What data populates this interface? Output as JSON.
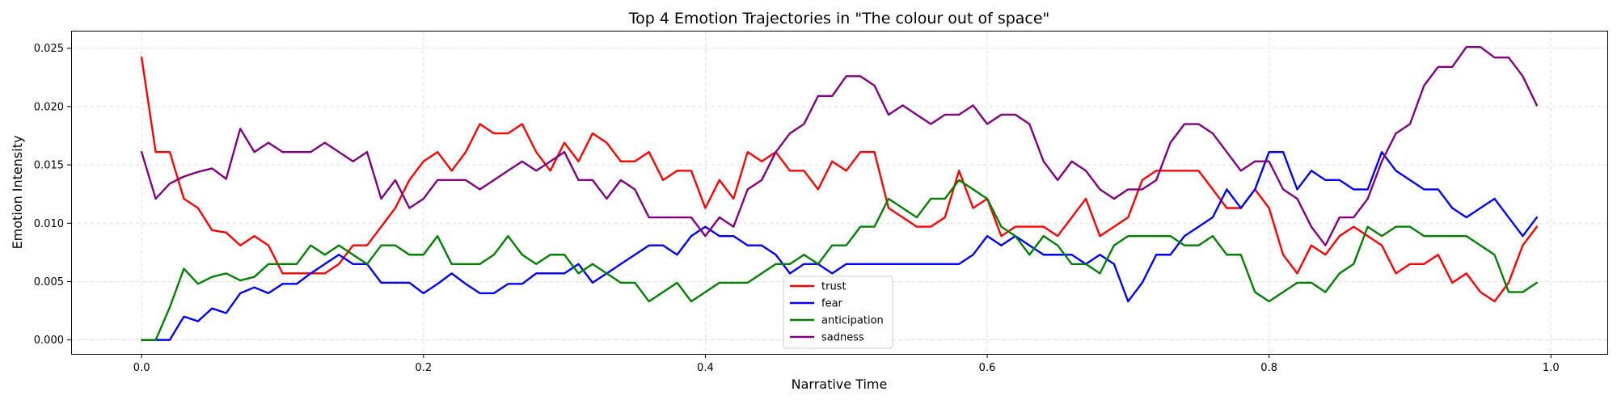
{
  "chart_data": {
    "type": "line",
    "title": "Top 4 Emotion Trajectories in \"The colour out of space\"",
    "xlabel": "Narrative Time",
    "ylabel": "Emotion Intensity",
    "xlim": [
      -0.05,
      1.04
    ],
    "ylim": [
      -0.0012,
      0.0265
    ],
    "xticks": [
      0.0,
      0.2,
      0.4,
      0.6,
      0.8,
      1.0
    ],
    "xtick_labels": [
      "0.0",
      "0.2",
      "0.4",
      "0.6",
      "0.8",
      "1.0"
    ],
    "yticks": [
      0.0,
      0.005,
      0.01,
      0.015,
      0.02,
      0.025
    ],
    "ytick_labels": [
      "0.000",
      "0.005",
      "0.010",
      "0.015",
      "0.020",
      "0.025"
    ],
    "grid": true,
    "legend_position": "bottom-center",
    "x_start": 0.0,
    "x_step": 0.01,
    "series": [
      {
        "name": "trust",
        "color": "#ff0000",
        "values": [
          0.0242,
          0.0161,
          0.0161,
          0.0121,
          0.0113,
          0.0094,
          0.0092,
          0.0081,
          0.0089,
          0.0081,
          0.0057,
          0.0057,
          0.0057,
          0.0057,
          0.0065,
          0.0081,
          0.0081,
          0.0097,
          0.0113,
          0.0137,
          0.0153,
          0.0161,
          0.0145,
          0.0161,
          0.0185,
          0.0177,
          0.0177,
          0.0185,
          0.0161,
          0.0145,
          0.0169,
          0.0153,
          0.0177,
          0.0169,
          0.0153,
          0.0153,
          0.0161,
          0.0137,
          0.0145,
          0.0145,
          0.0113,
          0.0137,
          0.0121,
          0.0161,
          0.0153,
          0.0161,
          0.0145,
          0.0145,
          0.0129,
          0.0153,
          0.0145,
          0.0161,
          0.0161,
          0.0113,
          0.0105,
          0.0097,
          0.0097,
          0.0105,
          0.0145,
          0.0113,
          0.0121,
          0.0089,
          0.0097,
          0.0097,
          0.0097,
          0.0089,
          0.0105,
          0.0121,
          0.0089,
          0.0097,
          0.0105,
          0.0137,
          0.0145,
          0.0145,
          0.0145,
          0.0145,
          0.0129,
          0.0113,
          0.0113,
          0.0129,
          0.0113,
          0.0073,
          0.0057,
          0.0081,
          0.0073,
          0.0089,
          0.0097,
          0.0089,
          0.0081,
          0.0057,
          0.0065,
          0.0065,
          0.0073,
          0.0049,
          0.0057,
          0.0041,
          0.0033,
          0.0049,
          0.0081,
          0.0097
        ]
      },
      {
        "name": "fear",
        "color": "#0000ff",
        "values": [
          0.0,
          0.0,
          0.0,
          0.002,
          0.0016,
          0.0027,
          0.0023,
          0.004,
          0.0045,
          0.004,
          0.0048,
          0.0048,
          0.0057,
          0.0065,
          0.0073,
          0.0065,
          0.0065,
          0.0049,
          0.0049,
          0.0049,
          0.004,
          0.0048,
          0.0057,
          0.0048,
          0.004,
          0.004,
          0.0048,
          0.0048,
          0.0057,
          0.0057,
          0.0057,
          0.0065,
          0.0049,
          0.0057,
          0.0065,
          0.0073,
          0.0081,
          0.0081,
          0.0073,
          0.0089,
          0.0097,
          0.0089,
          0.0089,
          0.0081,
          0.0081,
          0.0073,
          0.0057,
          0.0065,
          0.0065,
          0.0057,
          0.0065,
          0.0065,
          0.0065,
          0.0065,
          0.0065,
          0.0065,
          0.0065,
          0.0065,
          0.0065,
          0.0073,
          0.0089,
          0.0081,
          0.0089,
          0.0081,
          0.0073,
          0.0073,
          0.0073,
          0.0065,
          0.0073,
          0.0065,
          0.0033,
          0.0049,
          0.0073,
          0.0073,
          0.0089,
          0.0097,
          0.0105,
          0.0129,
          0.0113,
          0.0129,
          0.0161,
          0.0161,
          0.0129,
          0.0145,
          0.0137,
          0.0137,
          0.0129,
          0.0129,
          0.0161,
          0.0145,
          0.0137,
          0.0129,
          0.0129,
          0.0113,
          0.0105,
          0.0113,
          0.0121,
          0.0105,
          0.0089,
          0.0105
        ]
      },
      {
        "name": "anticipation",
        "color": "#008000",
        "values": [
          0.0,
          0.0,
          0.0028,
          0.0061,
          0.0048,
          0.0054,
          0.0057,
          0.0051,
          0.0054,
          0.0065,
          0.0065,
          0.0065,
          0.0081,
          0.0073,
          0.0081,
          0.0073,
          0.0065,
          0.0081,
          0.0081,
          0.0073,
          0.0073,
          0.0089,
          0.0065,
          0.0065,
          0.0065,
          0.0073,
          0.0089,
          0.0073,
          0.0065,
          0.0073,
          0.0073,
          0.0057,
          0.0065,
          0.0057,
          0.0049,
          0.0049,
          0.0033,
          0.0041,
          0.0049,
          0.0033,
          0.0041,
          0.0049,
          0.0049,
          0.0049,
          0.0057,
          0.0065,
          0.0065,
          0.0073,
          0.0065,
          0.0081,
          0.0081,
          0.0097,
          0.0097,
          0.0121,
          0.0113,
          0.0105,
          0.0121,
          0.0121,
          0.0137,
          0.0129,
          0.0121,
          0.0097,
          0.0089,
          0.0073,
          0.0089,
          0.0081,
          0.0065,
          0.0065,
          0.0057,
          0.0081,
          0.0089,
          0.0089,
          0.0089,
          0.0089,
          0.0081,
          0.0081,
          0.0089,
          0.0073,
          0.0073,
          0.0041,
          0.0033,
          0.0041,
          0.0049,
          0.0049,
          0.0041,
          0.0057,
          0.0065,
          0.0097,
          0.0089,
          0.0097,
          0.0097,
          0.0089,
          0.0089,
          0.0089,
          0.0089,
          0.0081,
          0.0073,
          0.0041,
          0.0041,
          0.0049
        ]
      },
      {
        "name": "sadness",
        "color": "#800080",
        "values": [
          0.0161,
          0.0121,
          0.0134,
          0.014,
          0.0144,
          0.0147,
          0.0138,
          0.0181,
          0.0161,
          0.0169,
          0.0161,
          0.0161,
          0.0161,
          0.0169,
          0.0161,
          0.0153,
          0.0161,
          0.0121,
          0.0137,
          0.0113,
          0.0121,
          0.0137,
          0.0137,
          0.0137,
          0.0129,
          0.0137,
          0.0145,
          0.0153,
          0.0145,
          0.0153,
          0.0161,
          0.0137,
          0.0137,
          0.0121,
          0.0137,
          0.0129,
          0.0105,
          0.0105,
          0.0105,
          0.0105,
          0.0089,
          0.0105,
          0.0097,
          0.0129,
          0.0137,
          0.0161,
          0.0177,
          0.0185,
          0.0209,
          0.0209,
          0.0226,
          0.0226,
          0.0218,
          0.0193,
          0.0201,
          0.0193,
          0.0185,
          0.0193,
          0.0193,
          0.0201,
          0.0185,
          0.0193,
          0.0193,
          0.0185,
          0.0153,
          0.0137,
          0.0153,
          0.0145,
          0.0129,
          0.0121,
          0.0129,
          0.0129,
          0.0137,
          0.0169,
          0.0185,
          0.0185,
          0.0177,
          0.0161,
          0.0145,
          0.0153,
          0.0153,
          0.0129,
          0.0121,
          0.0097,
          0.0081,
          0.0105,
          0.0105,
          0.0121,
          0.0153,
          0.0177,
          0.0185,
          0.0218,
          0.0234,
          0.0234,
          0.0251,
          0.0251,
          0.0242,
          0.0242,
          0.0226,
          0.0201
        ]
      }
    ]
  }
}
